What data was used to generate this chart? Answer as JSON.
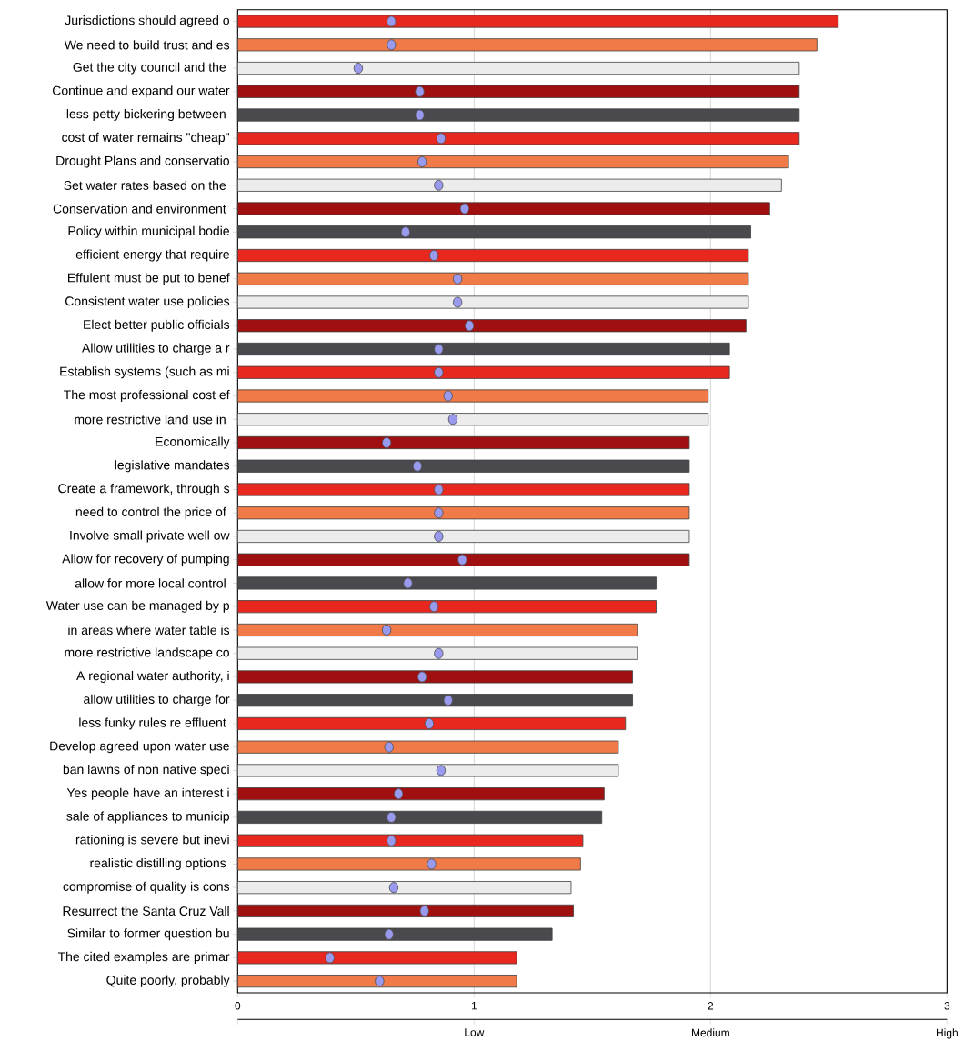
{
  "chart_data": {
    "type": "bar",
    "orientation": "horizontal",
    "categories": [
      "Jurisdictions should agreed o",
      "We need to build trust and es",
      "Get the city council and the ",
      "Continue and expand our water",
      "less petty bickering between ",
      "cost of water remains \"cheap\"",
      "Drought Plans and conservatio",
      "Set water rates based on the ",
      "Conservation and environment ",
      "Policy within municipal bodie",
      "efficient energy that require",
      "Effulent must be put to benef",
      "Consistent water use policies",
      "Elect better public officials",
      "Allow utilities to charge a r",
      "Establish systems (such as mi",
      "The most professional cost ef",
      "more restrictive land use in ",
      "Economically",
      "legislative mandates",
      "Create a framework, through s",
      "need to control the price of ",
      "Involve small private well ow",
      "Allow for recovery of pumping",
      "allow for more local control ",
      "Water use can be managed by p",
      "in areas where water table is",
      "more restrictive landscape co",
      "A regional water authority, i",
      "allow utilities to charge for",
      "less funky rules re effluent ",
      "Develop agreed upon water use",
      "ban lawns of non native speci",
      "Yes people have an interest i",
      "sale of appliances to municip",
      "rationing is severe but inevi",
      "realistic distilling options ",
      "compromise of quality is cons",
      "Resurrect the Santa Cruz Vall",
      "Similar to former question bu",
      "The cited examples are primar",
      "Quite poorly, probably"
    ],
    "series": [
      {
        "colors": [
          "#e8281e",
          "#f07a48",
          "#ececec",
          "#a01010",
          "#4a4a4e",
          "#e8281e",
          "#f07a48",
          "#ececec",
          "#a01010",
          "#4a4a4e",
          "#e8281e",
          "#f07a48",
          "#ececec",
          "#a01010",
          "#4a4a4e",
          "#e8281e",
          "#f07a48",
          "#ececec",
          "#a01010",
          "#4a4a4e",
          "#e8281e",
          "#f07a48",
          "#ececec",
          "#a01010",
          "#4a4a4e",
          "#e8281e",
          "#f07a48",
          "#ececec",
          "#a01010",
          "#4a4a4e",
          "#e8281e",
          "#f07a48",
          "#ececec",
          "#a01010",
          "#4a4a4e",
          "#e8281e",
          "#f07a48",
          "#ececec",
          "#a01010",
          "#4a4a4e",
          "#e8281e",
          "#f07a48"
        ],
        "values": [
          2.54,
          2.45,
          2.375,
          2.375,
          2.375,
          2.375,
          2.33,
          2.3,
          2.25,
          2.17,
          2.16,
          2.16,
          2.16,
          2.15,
          2.08,
          2.08,
          1.99,
          1.99,
          1.91,
          1.91,
          1.91,
          1.91,
          1.91,
          1.91,
          1.77,
          1.77,
          1.69,
          1.69,
          1.67,
          1.67,
          1.64,
          1.61,
          1.61,
          1.55,
          1.54,
          1.46,
          1.45,
          1.41,
          1.42,
          1.33,
          1.18,
          1.18
        ]
      },
      {
        "type": "scatter",
        "color": "#9999ee",
        "marker": "circle",
        "values": [
          0.65,
          0.65,
          0.51,
          0.77,
          0.77,
          0.86,
          0.78,
          0.85,
          0.96,
          0.71,
          0.83,
          0.93,
          0.93,
          0.98,
          0.85,
          0.85,
          0.89,
          0.91,
          0.63,
          0.76,
          0.85,
          0.85,
          0.85,
          0.95,
          0.72,
          0.83,
          0.63,
          0.85,
          0.78,
          0.89,
          0.81,
          0.64,
          0.86,
          0.68,
          0.65,
          0.65,
          0.82,
          0.66,
          0.79,
          0.64,
          0.39,
          0.6
        ]
      }
    ],
    "xlim": [
      0,
      3
    ],
    "xticks": [
      0,
      1,
      2,
      3
    ],
    "annotations": [
      "Low",
      "Medium",
      "High"
    ],
    "grid": "x"
  }
}
